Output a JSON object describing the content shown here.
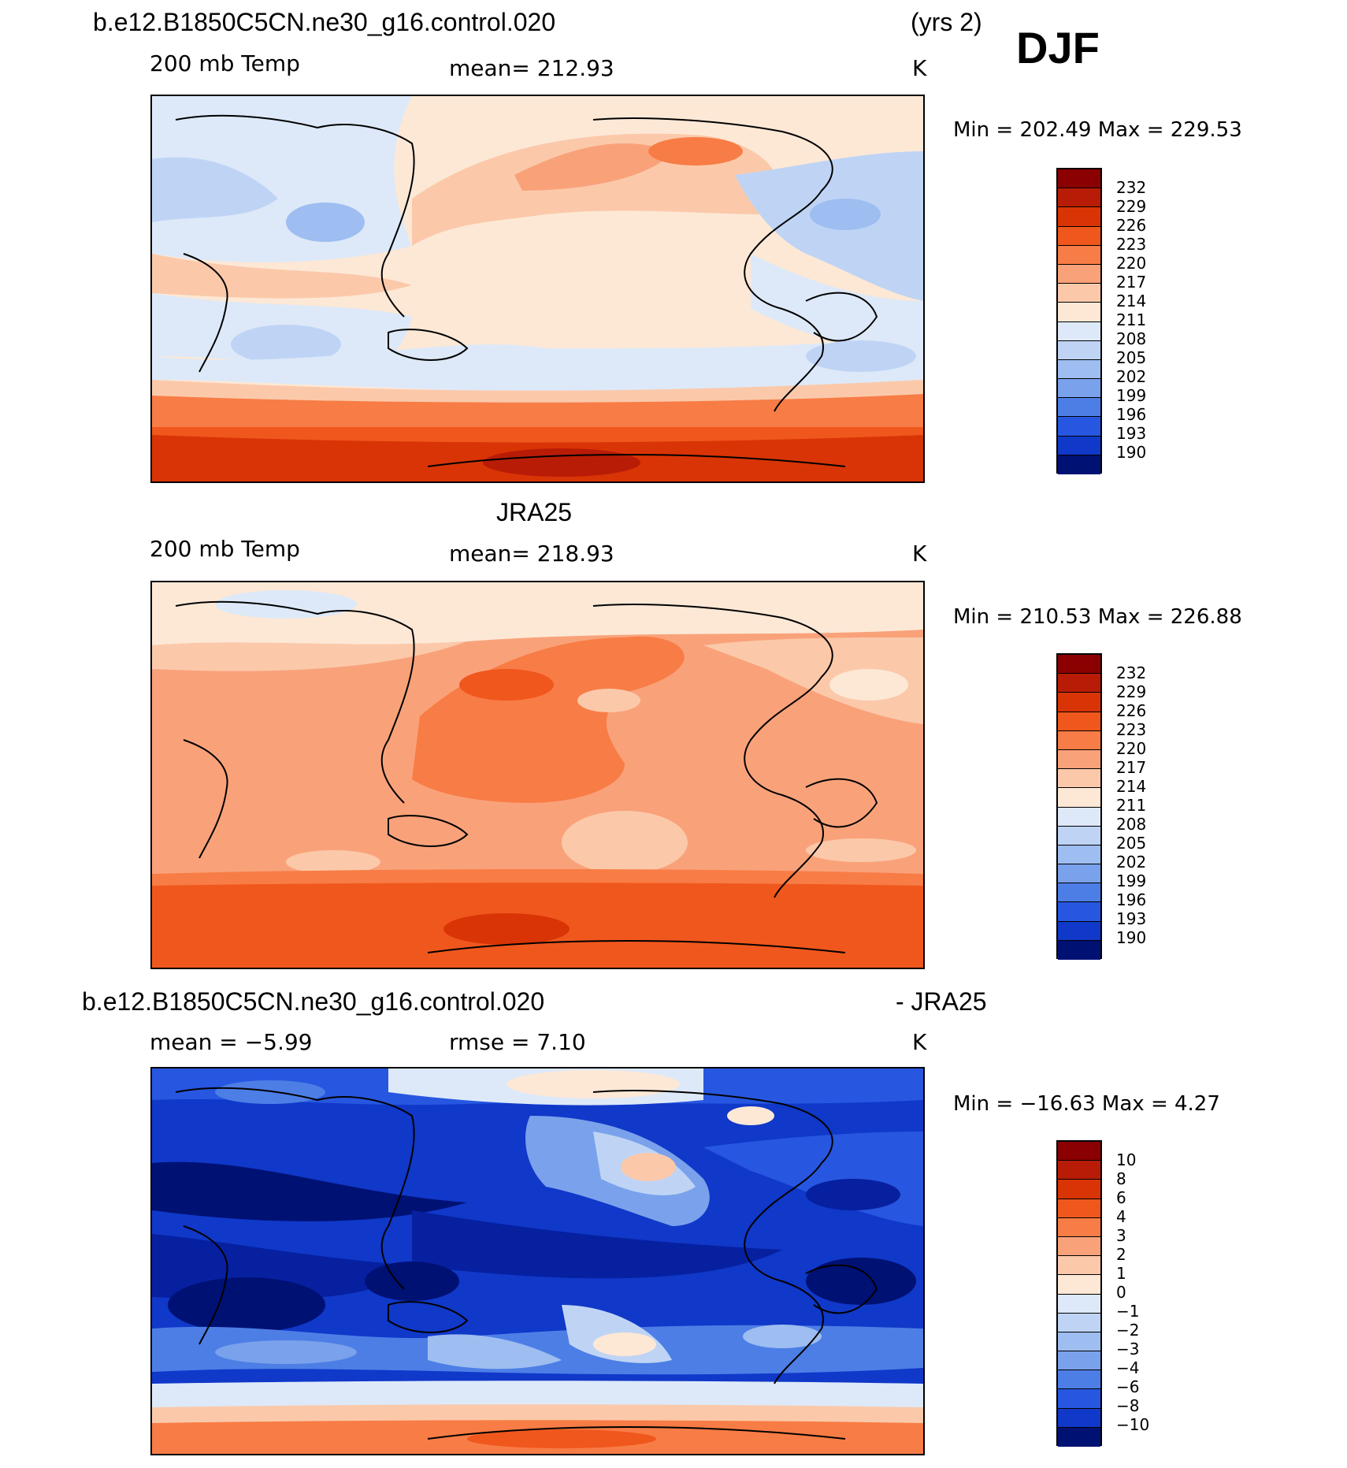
{
  "header": {
    "case_name": "b.e12.B1850C5CN.ne30_g16.control.020",
    "years": "(yrs 2)",
    "season": "DJF"
  },
  "panels": [
    {
      "title": "",
      "variable": "200 mb Temp",
      "stat_left": "",
      "stat": "mean= 212.93",
      "units": "K",
      "minmax": "Min = 202.49 Max = 229.53",
      "levels": [
        "232",
        "229",
        "226",
        "223",
        "220",
        "217",
        "214",
        "211",
        "208",
        "205",
        "202",
        "199",
        "196",
        "193",
        "190"
      ]
    },
    {
      "title": "JRA25",
      "variable": "200 mb Temp",
      "stat_left": "",
      "stat": "mean= 218.93",
      "units": "K",
      "minmax": "Min = 210.53 Max = 226.88",
      "levels": [
        "232",
        "229",
        "226",
        "223",
        "220",
        "217",
        "214",
        "211",
        "208",
        "205",
        "202",
        "199",
        "196",
        "193",
        "190"
      ]
    },
    {
      "title_left": "b.e12.B1850C5CN.ne30_g16.control.020",
      "title_right": "- JRA25",
      "variable": "",
      "stat_left": "mean =   −5.99",
      "stat": "rmse =    7.10",
      "units": "K",
      "minmax": "Min = −16.63 Max =    4.27",
      "levels": [
        "10",
        "8",
        "6",
        "4",
        "3",
        "2",
        "1",
        "0",
        "−1",
        "−2",
        "−3",
        "−4",
        "−6",
        "−8",
        "−10"
      ]
    }
  ],
  "colors": {
    "scale": [
      "#8b0000",
      "#b81c06",
      "#d93406",
      "#f0571d",
      "#f87c45",
      "#f9a27a",
      "#fbc9aa",
      "#fde8d6",
      "#dde9f8",
      "#bfd4f5",
      "#9ebdf0",
      "#7aa1eb",
      "#4d7ee6",
      "#2757e0",
      "#1038c9",
      "#0620a0",
      "#001174"
    ]
  }
}
